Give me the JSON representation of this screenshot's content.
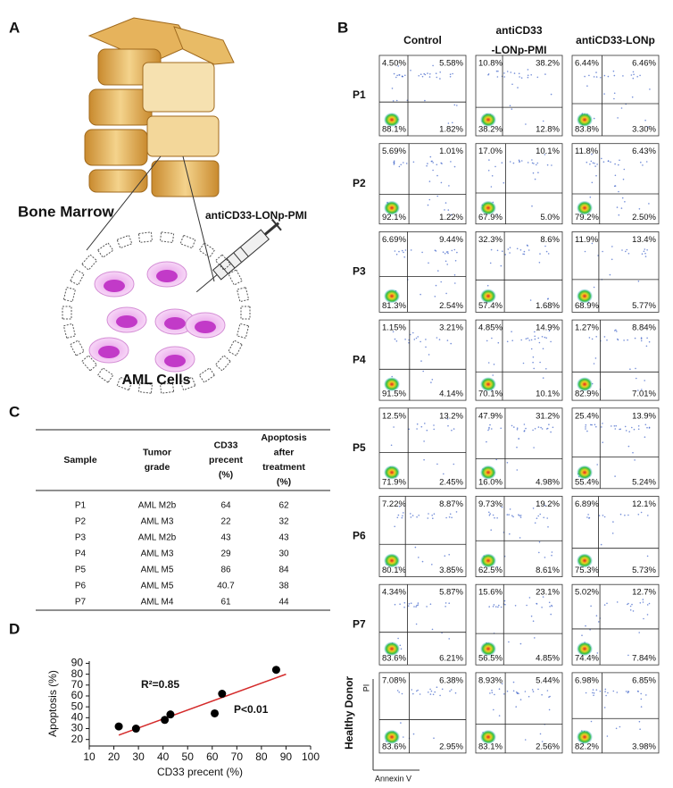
{
  "panel_labels": [
    "A",
    "B",
    "C",
    "D"
  ],
  "panel_a": {
    "bone_label": "Bone Marrow",
    "drug_label": "antiCD33-LONp-PMI",
    "cells_label": "AML Cells"
  },
  "flow": {
    "columns": [
      [
        "Control"
      ],
      [
        "antiCD33",
        "-LONp-PMI"
      ],
      [
        "antiCD33-LONp"
      ]
    ],
    "x_axis_label": "Annexin V",
    "y_axis_label": "PI",
    "rows": [
      {
        "label": "P1",
        "quadrants": [
          [
            "4.50%",
            "5.58%",
            "88.1%",
            "1.82%"
          ],
          [
            "10.8%",
            "38.2%",
            "38.2%",
            "12.8%"
          ],
          [
            "6.44%",
            "6.46%",
            "83.8%",
            "3.30%"
          ]
        ]
      },
      {
        "label": "P2",
        "quadrants": [
          [
            "5.69%",
            "1.01%",
            "92.1%",
            "1.22%"
          ],
          [
            "17.0%",
            "10.1%",
            "67.9%",
            "5.0%"
          ],
          [
            "11.8%",
            "6.43%",
            "79.2%",
            "2.50%"
          ]
        ]
      },
      {
        "label": "P3",
        "quadrants": [
          [
            "6.69%",
            "9.44%",
            "81.3%",
            "2.54%"
          ],
          [
            "32.3%",
            "8.6%",
            "57.4%",
            "1.68%"
          ],
          [
            "11.9%",
            "13.4%",
            "68.9%",
            "5.77%"
          ]
        ]
      },
      {
        "label": "P4",
        "quadrants": [
          [
            "1.15%",
            "3.21%",
            "91.5%",
            "4.14%"
          ],
          [
            "4.85%",
            "14.9%",
            "70.1%",
            "10.1%"
          ],
          [
            "1.27%",
            "8.84%",
            "82.9%",
            "7.01%"
          ]
        ]
      },
      {
        "label": "P5",
        "quadrants": [
          [
            "12.5%",
            "13.2%",
            "71.9%",
            "2.45%"
          ],
          [
            "47.9%",
            "31.2%",
            "16.0%",
            "4.98%"
          ],
          [
            "25.4%",
            "13.9%",
            "55.4%",
            "5.24%"
          ]
        ]
      },
      {
        "label": "P6",
        "quadrants": [
          [
            "7.22%",
            "8.87%",
            "80.1%",
            "3.85%"
          ],
          [
            "9.73%",
            "19.2%",
            "62.5%",
            "8.61%"
          ],
          [
            "6.89%",
            "12.1%",
            "75.3%",
            "5.73%"
          ]
        ]
      },
      {
        "label": "P7",
        "quadrants": [
          [
            "4.34%",
            "5.87%",
            "83.6%",
            "6.21%"
          ],
          [
            "15.6%",
            "23.1%",
            "56.5%",
            "4.85%"
          ],
          [
            "5.02%",
            "12.7%",
            "74.4%",
            "7.84%"
          ]
        ]
      },
      {
        "label": "Healthy Donor",
        "quadrants": [
          [
            "7.08%",
            "6.38%",
            "83.6%",
            "2.95%"
          ],
          [
            "8.93%",
            "5.44%",
            "83.1%",
            "2.56%"
          ],
          [
            "6.98%",
            "6.85%",
            "82.2%",
            "3.98%"
          ]
        ]
      }
    ]
  },
  "table": {
    "header": [
      [
        "Sample"
      ],
      [
        "Tumor",
        "grade"
      ],
      [
        "CD33",
        "precent",
        "(%)"
      ],
      [
        "Apoptosis",
        "after",
        "treatment",
        "(%)"
      ]
    ],
    "rows": [
      [
        "P1",
        "AML M2b",
        64,
        62
      ],
      [
        "P2",
        "AML M3",
        22,
        32
      ],
      [
        "P3",
        "AML M2b",
        43,
        43
      ],
      [
        "P4",
        "AML M3",
        29,
        30
      ],
      [
        "P5",
        "AML M5",
        86,
        84
      ],
      [
        "P6",
        "AML M5",
        40.7,
        38
      ],
      [
        "P7",
        "AML M4",
        61,
        44
      ]
    ]
  },
  "chart_data": {
    "type": "scatter",
    "xlabel": "CD33 precent (%)",
    "ylabel": "Apoptosis (%)",
    "x": [
      64,
      22,
      43,
      29,
      86,
      40.7,
      61
    ],
    "values": [
      62,
      32,
      43,
      30,
      84,
      38,
      44
    ],
    "color": "#000000",
    "xlim": [
      10,
      100
    ],
    "xticks": [
      10,
      20,
      30,
      40,
      50,
      60,
      70,
      80,
      90,
      100
    ],
    "ylim": [
      14,
      92
    ],
    "yticks": [
      20,
      30,
      40,
      50,
      60,
      70,
      80,
      90
    ],
    "fit": {
      "x": [
        22,
        90
      ],
      "values": [
        24,
        80
      ],
      "color": "#d42a2a"
    },
    "annotations": [
      "R²=0.85",
      "P<0.01"
    ]
  }
}
